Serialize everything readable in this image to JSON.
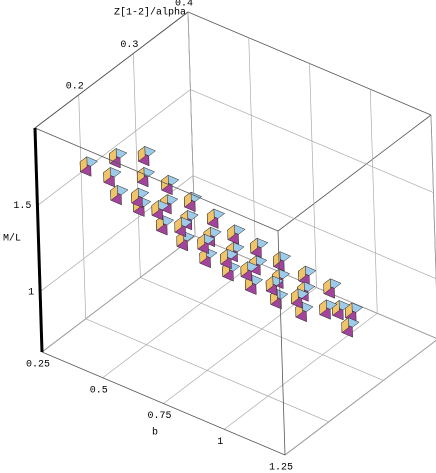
{
  "chart_data": {
    "type": "scatter3d",
    "x_label": "b",
    "y_label": "M/L",
    "z_label": "Z[1-2]/alpha",
    "xlim": [
      0.25,
      1.25
    ],
    "ylim": [
      0.65,
      1.95
    ],
    "zlim": [
      0.12,
      0.4
    ],
    "xticks": [
      0.25,
      0.5,
      0.75,
      1,
      1.25
    ],
    "yticks": [
      1,
      1.5
    ],
    "zticks": [
      0.2,
      0.3,
      0.4
    ],
    "grid": true,
    "face_colors": {
      "top": "#9fcbea",
      "front": "#a3449c",
      "side": "#f2c46a"
    },
    "x": [
      0.33,
      0.36,
      0.38,
      0.41,
      0.43,
      0.45,
      0.47,
      0.48,
      0.5,
      0.52,
      0.53,
      0.55,
      0.57,
      0.58,
      0.6,
      0.62,
      0.63,
      0.65,
      0.67,
      0.68,
      0.7,
      0.72,
      0.74,
      0.75,
      0.77,
      0.79,
      0.8,
      0.82,
      0.84,
      0.86,
      0.88,
      0.9,
      0.92,
      0.94,
      0.96,
      0.98,
      1.0,
      1.03,
      1.06,
      1.09,
      1.12
    ],
    "y": [
      1.63,
      1.6,
      1.55,
      1.57,
      1.5,
      1.52,
      1.46,
      1.42,
      1.45,
      1.38,
      1.4,
      1.34,
      1.36,
      1.3,
      1.32,
      1.26,
      1.28,
      1.22,
      1.24,
      1.18,
      1.2,
      1.15,
      1.17,
      1.12,
      1.14,
      1.09,
      1.11,
      1.06,
      1.08,
      1.03,
      1.05,
      1.0,
      1.02,
      0.98,
      1.0,
      0.95,
      0.97,
      0.93,
      0.92,
      0.9,
      0.88
    ],
    "z": [
      0.18,
      0.22,
      0.2,
      0.25,
      0.19,
      0.23,
      0.21,
      0.26,
      0.2,
      0.24,
      0.22,
      0.27,
      0.21,
      0.25,
      0.23,
      0.28,
      0.22,
      0.26,
      0.24,
      0.29,
      0.23,
      0.27,
      0.25,
      0.3,
      0.24,
      0.28,
      0.26,
      0.31,
      0.25,
      0.29,
      0.27,
      0.32,
      0.26,
      0.3,
      0.28,
      0.33,
      0.27,
      0.3,
      0.31,
      0.32,
      0.3
    ]
  }
}
